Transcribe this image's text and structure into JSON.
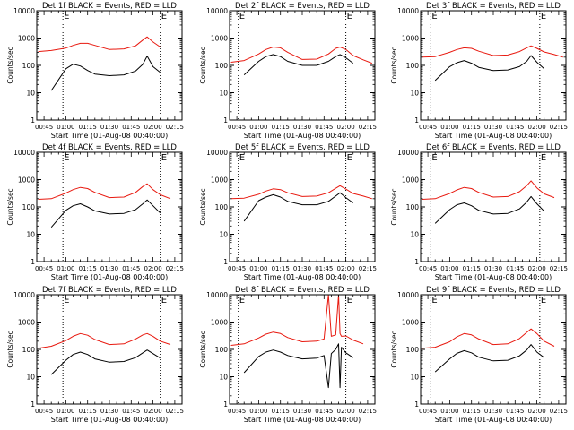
{
  "colors": {
    "events": "#000000",
    "lld": "#e8190f",
    "axis": "#000000"
  },
  "chart_data": [
    {
      "type": "line",
      "title": "Det 1f BLACK = Events, RED = LLD",
      "xlabel": "Start Time (01-Aug-08 00:40:00)",
      "ylabel": "Counts/sec",
      "xlim": [
        "00:40",
        "02:20"
      ],
      "ylim": [
        1,
        10000
      ],
      "yscale": "log",
      "xticks": [
        "00:45",
        "01:00",
        "01:15",
        "01:30",
        "01:45",
        "02:00",
        "02:15"
      ],
      "yticks": [
        "1",
        "10",
        "100",
        "1000",
        "10000"
      ],
      "markers": [
        "00:58",
        "02:05"
      ],
      "marker_labels": [
        "E",
        "E"
      ],
      "x": [
        "00:41",
        "00:50",
        "01:00",
        "01:05",
        "01:10",
        "01:15",
        "01:20",
        "01:30",
        "01:40",
        "01:48",
        "01:53",
        "01:56",
        "02:00",
        "02:05",
        "02:12",
        "02:18"
      ],
      "series": [
        {
          "role": "lld",
          "values": [
            320,
            350,
            430,
            540,
            640,
            640,
            540,
            380,
            400,
            520,
            850,
            1100,
            720,
            470,
            null,
            null
          ]
        },
        {
          "role": "events",
          "values": [
            null,
            12,
            75,
            110,
            95,
            65,
            48,
            42,
            45,
            62,
            110,
            220,
            90,
            55,
            null,
            null
          ]
        }
      ]
    },
    {
      "type": "line",
      "title": "Det 2f BLACK = Events, RED = LLD",
      "xlabel": "Start Time (01-Aug-08 00:40:00)",
      "ylabel": "Counts/sec",
      "xlim": [
        "00:40",
        "02:20"
      ],
      "ylim": [
        1,
        10000
      ],
      "yscale": "log",
      "xticks": [
        "00:45",
        "01:00",
        "01:15",
        "01:30",
        "01:45",
        "02:00",
        "02:15"
      ],
      "yticks": [
        "1",
        "10",
        "100",
        "1000",
        "10000"
      ],
      "markers": [
        "00:46",
        "02:00"
      ],
      "marker_labels": [
        "E",
        "E"
      ],
      "x": [
        "00:41",
        "00:50",
        "01:00",
        "01:05",
        "01:10",
        "01:15",
        "01:20",
        "01:30",
        "01:40",
        "01:48",
        "01:53",
        "01:56",
        "02:00",
        "02:05",
        "02:12",
        "02:18"
      ],
      "series": [
        {
          "role": "lld",
          "values": [
            130,
            150,
            260,
            380,
            470,
            440,
            300,
            165,
            170,
            260,
            420,
            470,
            380,
            230,
            160,
            120
          ]
        },
        {
          "role": "events",
          "values": [
            null,
            45,
            140,
            210,
            250,
            210,
            140,
            100,
            100,
            140,
            210,
            250,
            190,
            120,
            null,
            null
          ]
        }
      ]
    },
    {
      "type": "line",
      "title": "Det 3f BLACK = Events, RED = LLD",
      "xlabel": "Start Time (01-Aug-08 00:40:00)",
      "ylabel": "Counts/sec",
      "xlim": [
        "00:40",
        "02:20"
      ],
      "ylim": [
        1,
        10000
      ],
      "yscale": "log",
      "xticks": [
        "00:45",
        "01:00",
        "01:15",
        "01:30",
        "01:45",
        "02:00",
        "02:15"
      ],
      "yticks": [
        "1",
        "10",
        "100",
        "1000",
        "10000"
      ],
      "markers": [
        "00:47",
        "02:02"
      ],
      "marker_labels": [
        "E",
        "E"
      ],
      "x": [
        "00:41",
        "00:50",
        "01:00",
        "01:05",
        "01:10",
        "01:15",
        "01:20",
        "01:30",
        "01:40",
        "01:48",
        "01:53",
        "01:56",
        "02:00",
        "02:05",
        "02:12",
        "02:18"
      ],
      "series": [
        {
          "role": "lld",
          "values": [
            200,
            210,
            300,
            380,
            440,
            420,
            330,
            230,
            240,
            320,
            440,
            520,
            420,
            310,
            250,
            200
          ]
        },
        {
          "role": "events",
          "values": [
            null,
            28,
            90,
            125,
            150,
            120,
            85,
            65,
            68,
            90,
            140,
            230,
            130,
            75,
            null,
            null
          ]
        }
      ]
    },
    {
      "type": "line",
      "title": "Det 4f BLACK = Events, RED = LLD",
      "xlabel": "Start Time (01-Aug-08 00:40:00)",
      "ylabel": "Counts/sec",
      "xlim": [
        "00:40",
        "02:20"
      ],
      "ylim": [
        1,
        10000
      ],
      "yscale": "log",
      "xticks": [
        "00:45",
        "01:00",
        "01:15",
        "01:30",
        "01:45",
        "02:00",
        "02:15"
      ],
      "yticks": [
        "1",
        "10",
        "100",
        "1000",
        "10000"
      ],
      "markers": [
        "00:58",
        "02:05"
      ],
      "marker_labels": [
        "E",
        "E"
      ],
      "x": [
        "00:41",
        "00:50",
        "01:00",
        "01:05",
        "01:10",
        "01:15",
        "01:20",
        "01:30",
        "01:40",
        "01:48",
        "01:53",
        "01:56",
        "02:00",
        "02:05",
        "02:12",
        "02:18"
      ],
      "series": [
        {
          "role": "lld",
          "values": [
            190,
            200,
            320,
            430,
            520,
            470,
            340,
            220,
            230,
            340,
            560,
            700,
            430,
            280,
            200,
            null
          ]
        },
        {
          "role": "events",
          "values": [
            null,
            18,
            75,
            110,
            130,
            100,
            72,
            55,
            58,
            80,
            130,
            180,
            110,
            60,
            null,
            null
          ]
        }
      ]
    },
    {
      "type": "line",
      "title": "Det 5f BLACK = Events, RED = LLD",
      "xlabel": "Start Time (01-Aug-08 00:40:00)",
      "ylabel": "Counts/sec",
      "xlim": [
        "00:40",
        "02:20"
      ],
      "ylim": [
        1,
        10000
      ],
      "yscale": "log",
      "xticks": [
        "00:45",
        "01:00",
        "01:15",
        "01:30",
        "01:45",
        "02:00",
        "02:15"
      ],
      "yticks": [
        "1",
        "10",
        "100",
        "1000",
        "10000"
      ],
      "markers": [
        "00:46",
        "02:00"
      ],
      "marker_labels": [
        "E",
        "E"
      ],
      "x": [
        "00:41",
        "00:50",
        "01:00",
        "01:05",
        "01:10",
        "01:15",
        "01:20",
        "01:30",
        "01:40",
        "01:48",
        "01:53",
        "01:56",
        "02:00",
        "02:05",
        "02:12",
        "02:18"
      ],
      "series": [
        {
          "role": "lld",
          "values": [
            200,
            210,
            290,
            380,
            460,
            430,
            330,
            240,
            250,
            330,
            480,
            600,
            450,
            310,
            250,
            200
          ]
        },
        {
          "role": "events",
          "values": [
            null,
            30,
            170,
            230,
            280,
            230,
            160,
            120,
            120,
            160,
            250,
            330,
            220,
            140,
            null,
            null
          ]
        }
      ]
    },
    {
      "type": "line",
      "title": "Det 6f BLACK = Events, RED = LLD",
      "xlabel": "Start Time (01-Aug-08 00:40:00)",
      "ylabel": "Counts/sec",
      "xlim": [
        "00:40",
        "02:20"
      ],
      "ylim": [
        1,
        10000
      ],
      "yscale": "log",
      "xticks": [
        "00:45",
        "01:00",
        "01:15",
        "01:30",
        "01:45",
        "02:00",
        "02:15"
      ],
      "yticks": [
        "1",
        "10",
        "100",
        "1000",
        "10000"
      ],
      "markers": [
        "00:47",
        "02:02"
      ],
      "marker_labels": [
        "E",
        "E"
      ],
      "x": [
        "00:41",
        "00:50",
        "01:00",
        "01:05",
        "01:10",
        "01:15",
        "01:20",
        "01:30",
        "01:40",
        "01:48",
        "01:53",
        "01:56",
        "02:00",
        "02:05",
        "02:12",
        "02:18"
      ],
      "series": [
        {
          "role": "lld",
          "values": [
            190,
            200,
            310,
            420,
            520,
            470,
            340,
            230,
            240,
            360,
            600,
            900,
            500,
            300,
            220,
            null
          ]
        },
        {
          "role": "events",
          "values": [
            null,
            25,
            80,
            120,
            140,
            110,
            75,
            55,
            58,
            85,
            150,
            240,
            130,
            70,
            null,
            null
          ]
        }
      ]
    },
    {
      "type": "line",
      "title": "Det 7f BLACK = Events, RED = LLD",
      "xlabel": "Start Time (01-Aug-08 00:40:00)",
      "ylabel": "Counts/sec",
      "xlim": [
        "00:40",
        "02:20"
      ],
      "ylim": [
        1,
        10000
      ],
      "yscale": "log",
      "xticks": [
        "00:45",
        "01:00",
        "01:15",
        "01:30",
        "01:45",
        "02:00",
        "02:15"
      ],
      "yticks": [
        "1",
        "10",
        "100",
        "1000",
        "10000"
      ],
      "markers": [
        "00:58",
        "02:05"
      ],
      "marker_labels": [
        "E",
        "E"
      ],
      "x": [
        "00:41",
        "00:50",
        "01:00",
        "01:05",
        "01:10",
        "01:15",
        "01:20",
        "01:30",
        "01:40",
        "01:48",
        "01:53",
        "01:56",
        "02:00",
        "02:05",
        "02:12",
        "02:18"
      ],
      "series": [
        {
          "role": "lld",
          "values": [
            110,
            130,
            210,
            300,
            380,
            330,
            230,
            150,
            160,
            240,
            340,
            380,
            300,
            200,
            150,
            null
          ]
        },
        {
          "role": "events",
          "values": [
            null,
            12,
            40,
            65,
            80,
            65,
            45,
            34,
            36,
            50,
            75,
            95,
            70,
            48,
            null,
            null
          ]
        }
      ]
    },
    {
      "type": "line",
      "title": "Det 8f BLACK = Events, RED = LLD",
      "xlabel": "Start Time (01-Aug-08 00:40:00)",
      "ylabel": "Counts/sec",
      "xlim": [
        "00:40",
        "02:20"
      ],
      "ylim": [
        1,
        10000
      ],
      "yscale": "log",
      "xticks": [
        "00:45",
        "01:00",
        "01:15",
        "01:30",
        "01:45",
        "02:00",
        "02:15"
      ],
      "yticks": [
        "1",
        "10",
        "100",
        "1000",
        "10000"
      ],
      "markers": [
        "00:46",
        "02:00"
      ],
      "marker_labels": [
        "E",
        "E"
      ],
      "x": [
        "00:41",
        "00:50",
        "01:00",
        "01:05",
        "01:10",
        "01:15",
        "01:20",
        "01:30",
        "01:40",
        "01:45",
        "01:48",
        "01:50",
        "01:53",
        "01:55",
        "01:56",
        "01:57",
        "02:00",
        "02:05",
        "02:12",
        "02:18"
      ],
      "series": [
        {
          "role": "lld",
          "values": [
            140,
            160,
            260,
            360,
            430,
            380,
            270,
            190,
            200,
            240,
            10000,
            300,
            340,
            10000,
            380,
            300,
            310,
            220,
            160,
            null
          ]
        },
        {
          "role": "events",
          "values": [
            null,
            14,
            55,
            80,
            95,
            80,
            60,
            45,
            48,
            60,
            4,
            70,
            100,
            160,
            4,
            120,
            75,
            50,
            null,
            null
          ]
        }
      ]
    },
    {
      "type": "line",
      "title": "Det 9f BLACK = Events, RED = LLD",
      "xlabel": "Start Time (01-Aug-08 00:40:00)",
      "ylabel": "Counts/sec",
      "xlim": [
        "00:40",
        "02:20"
      ],
      "ylim": [
        1,
        10000
      ],
      "yscale": "log",
      "xticks": [
        "00:45",
        "01:00",
        "01:15",
        "01:30",
        "01:45",
        "02:00",
        "02:15"
      ],
      "yticks": [
        "1",
        "10",
        "100",
        "1000",
        "10000"
      ],
      "markers": [
        "00:47",
        "02:02"
      ],
      "marker_labels": [
        "E",
        "E"
      ],
      "x": [
        "00:41",
        "00:50",
        "01:00",
        "01:05",
        "01:10",
        "01:15",
        "01:20",
        "01:30",
        "01:40",
        "01:48",
        "01:53",
        "01:56",
        "02:00",
        "02:05",
        "02:12",
        "02:18"
      ],
      "series": [
        {
          "role": "lld",
          "values": [
            110,
            120,
            190,
            290,
            380,
            340,
            240,
            150,
            160,
            250,
            420,
            560,
            380,
            200,
            130,
            null
          ]
        },
        {
          "role": "events",
          "values": [
            null,
            15,
            45,
            72,
            90,
            75,
            52,
            38,
            40,
            58,
            95,
            150,
            80,
            50,
            null,
            null
          ]
        }
      ]
    }
  ]
}
